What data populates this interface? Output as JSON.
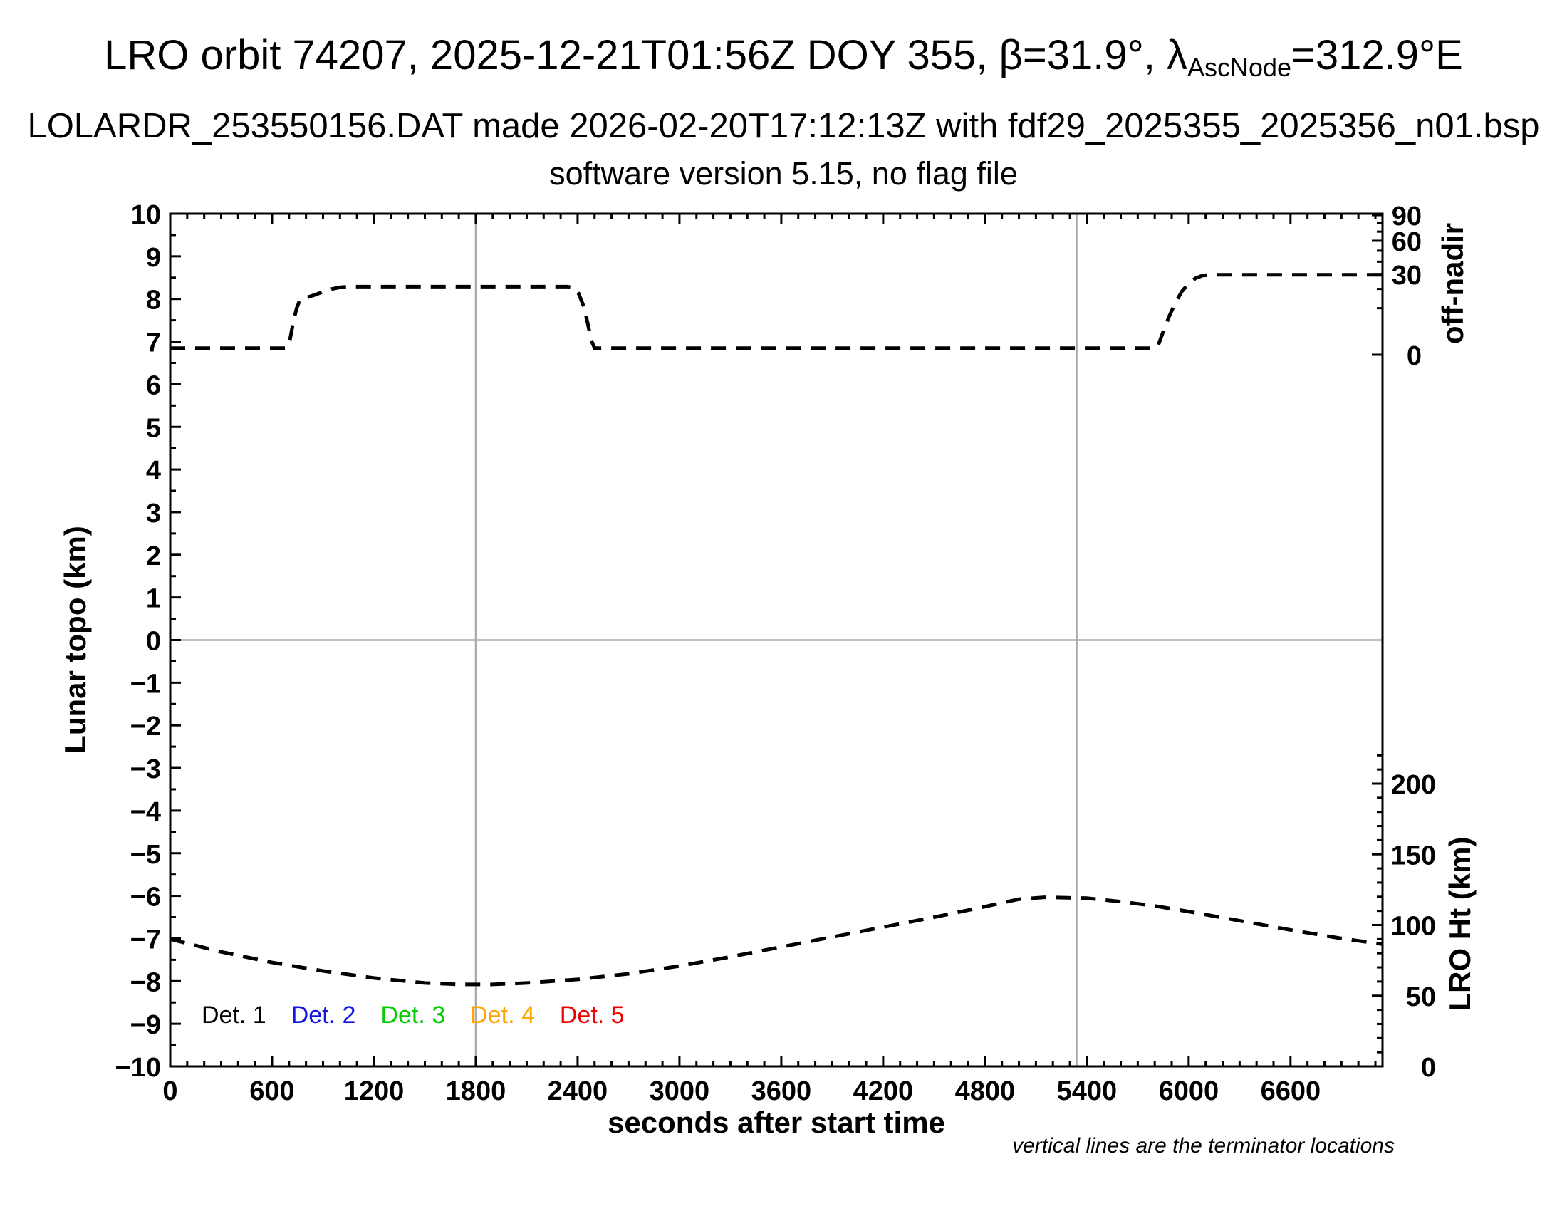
{
  "header": {
    "title_prefix": "LRO orbit 74207, 2025-12-21T01:56Z DOY 355, β=31.9°, λ",
    "title_subscript": "AscNode",
    "title_suffix": "=312.9°E",
    "subtitle1": "LOLARDR_253550156.DAT made 2026-02-20T17:12:13Z with fdf29_2025355_2025356_n01.bsp",
    "subtitle2": "software version 5.15, no flag file"
  },
  "footnote": "vertical lines are the terminator locations",
  "legend": {
    "items": [
      {
        "label": "Det. 1",
        "color": "#000000"
      },
      {
        "label": "Det. 2",
        "color": "#1414e6"
      },
      {
        "label": "Det. 3",
        "color": "#00cc00"
      },
      {
        "label": "Det. 4",
        "color": "#ffa500"
      },
      {
        "label": "Det. 5",
        "color": "#ee0000"
      }
    ]
  },
  "chart_data": {
    "type": "line",
    "title": "LRO orbit 74207, 2025-12-21T01:56Z DOY 355, beta=31.9 deg, lambda_AscNode=312.9E",
    "xlabel": "seconds after start time",
    "x_range": [
      0,
      7142
    ],
    "x_ticks": [
      0,
      600,
      1200,
      1800,
      2400,
      3000,
      3600,
      4200,
      4800,
      5400,
      6000,
      6600
    ],
    "x_minor_step": 100,
    "left_axis": {
      "label": "Lunar topo (km)",
      "range": [
        -10,
        10
      ],
      "tick_step": 1,
      "minor_step": 0.5
    },
    "right_top_axis": {
      "label": "off-nadir",
      "units": "deg",
      "ticks": [
        90,
        60,
        30,
        0
      ],
      "minor_ticks": [
        80,
        70,
        50,
        40,
        20,
        10
      ],
      "scale": "sqrt"
    },
    "right_bottom_axis": {
      "label": "LRO Ht (km)",
      "ticks": [
        200,
        150,
        100,
        50,
        0
      ],
      "minor_step": 10,
      "minor_max": 220
    },
    "terminator_lines_x": [
      1800,
      5340
    ],
    "zero_line_y": 0,
    "grid": "off",
    "legend_position": "bottom-left-inside",
    "line_style": "dashed",
    "series": [
      {
        "name": "off-nadir angle",
        "axis": "right-top",
        "units": "deg",
        "color": "#000000",
        "style": "dashed",
        "points": [
          [
            0,
            0.2
          ],
          [
            680,
            0.2
          ],
          [
            705,
            1
          ],
          [
            725,
            5
          ],
          [
            745,
            10
          ],
          [
            762,
            13.5
          ],
          [
            775,
            14.8
          ],
          [
            810,
            15.3
          ],
          [
            850,
            16.5
          ],
          [
            900,
            18.3
          ],
          [
            950,
            19.9
          ],
          [
            1000,
            21
          ],
          [
            1050,
            21.4
          ],
          [
            2340,
            21.4
          ],
          [
            2375,
            20.8
          ],
          [
            2405,
            17.5
          ],
          [
            2435,
            11
          ],
          [
            2460,
            4.5
          ],
          [
            2480,
            1
          ],
          [
            2500,
            0.2
          ],
          [
            5800,
            0.2
          ],
          [
            5825,
            0.6
          ],
          [
            5855,
            3
          ],
          [
            5890,
            7.5
          ],
          [
            5925,
            13
          ],
          [
            5960,
            18.5
          ],
          [
            6000,
            23.5
          ],
          [
            6040,
            27
          ],
          [
            6080,
            28.9
          ],
          [
            6120,
            29.5
          ],
          [
            7140,
            29.5
          ]
        ]
      },
      {
        "name": "LRO height",
        "axis": "right-bottom",
        "units": "km",
        "color": "#000000",
        "style": "dashed",
        "points": [
          [
            0,
            90
          ],
          [
            300,
            81
          ],
          [
            600,
            73.5
          ],
          [
            900,
            67.5
          ],
          [
            1200,
            62.5
          ],
          [
            1500,
            59
          ],
          [
            1700,
            58
          ],
          [
            1900,
            58
          ],
          [
            2100,
            59
          ],
          [
            2400,
            61.5
          ],
          [
            2700,
            65.5
          ],
          [
            3000,
            71
          ],
          [
            3300,
            77.5
          ],
          [
            3600,
            84.5
          ],
          [
            3900,
            91.5
          ],
          [
            4200,
            98.5
          ],
          [
            4500,
            105.5
          ],
          [
            4800,
            113
          ],
          [
            5000,
            118.3
          ],
          [
            5150,
            119.6
          ],
          [
            5400,
            119
          ],
          [
            5600,
            116.5
          ],
          [
            5800,
            113.5
          ],
          [
            6000,
            109.5
          ],
          [
            6300,
            103
          ],
          [
            6600,
            96.5
          ],
          [
            6900,
            90.5
          ],
          [
            7140,
            86.5
          ]
        ]
      }
    ]
  }
}
